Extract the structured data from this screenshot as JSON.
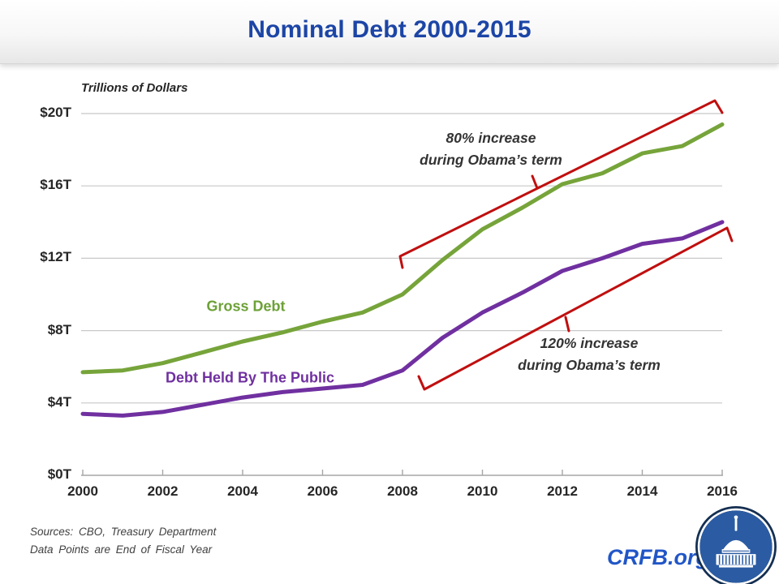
{
  "title": "Nominal Debt 2000-2015",
  "axis_unit_label": "Trillions of Dollars",
  "series_labels": {
    "gross": "Gross Debt",
    "public": "Debt Held By The Public"
  },
  "annotations": {
    "gross": {
      "line1": "80% increase",
      "line2": "during Obama’s term"
    },
    "public": {
      "line1": "120% increase",
      "line2": "during Obama’s term"
    }
  },
  "footer": {
    "source_line1": "Sources: CBO, Treasury Department",
    "source_line2": "Data Points are End of Fiscal Year",
    "brand": "CRFB.org"
  },
  "colors": {
    "title_blue": "#1c45a6",
    "brand_blue": "#2156c7",
    "gross_green": "#76a43a",
    "public_purple": "#7030a0",
    "bracket_red": "#c00f0f",
    "gridline_gray": "#c8c8c8",
    "axis_gray": "#a6a6a6",
    "text_dark": "#262626"
  },
  "chart_data": {
    "type": "line",
    "title": "Nominal Debt 2000-2015",
    "ylabel": "Trillions of Dollars",
    "xlim": [
      2000,
      2016
    ],
    "ylim": [
      0,
      20
    ],
    "grid": "horizontal",
    "legend": "inline-labels",
    "x": [
      2000,
      2001,
      2002,
      2003,
      2004,
      2005,
      2006,
      2007,
      2008,
      2009,
      2010,
      2011,
      2012,
      2013,
      2014,
      2015,
      2016
    ],
    "x_ticks": [
      2000,
      2002,
      2004,
      2006,
      2008,
      2010,
      2012,
      2014,
      2016
    ],
    "x_tick_labels": [
      "2000",
      "2002",
      "2004",
      "2006",
      "2008",
      "2010",
      "2012",
      "2014",
      "2016"
    ],
    "y_ticks": [
      0,
      4,
      8,
      12,
      16,
      20
    ],
    "y_tick_labels": [
      "$0T",
      "$4T",
      "$8T",
      "$12T",
      "$16T",
      "$20T"
    ],
    "series": [
      {
        "name": "Gross Debt",
        "color": "#76a43a",
        "values": [
          5.7,
          5.8,
          6.2,
          6.8,
          7.4,
          7.9,
          8.5,
          9.0,
          10.0,
          11.9,
          13.6,
          14.8,
          16.1,
          16.7,
          17.8,
          18.2,
          19.4
        ]
      },
      {
        "name": "Debt Held By The Public",
        "color": "#7030a0",
        "values": [
          3.4,
          3.3,
          3.5,
          3.9,
          4.3,
          4.6,
          4.8,
          5.0,
          5.8,
          7.6,
          9.0,
          10.1,
          11.3,
          12.0,
          12.8,
          13.1,
          14.0
        ]
      }
    ],
    "annotations": [
      {
        "text": "80% increase during Obama’s term",
        "series": "Gross Debt",
        "span_years": [
          2008,
          2016
        ]
      },
      {
        "text": "120% increase during Obama’s term",
        "series": "Debt Held By The Public",
        "span_years": [
          2008.5,
          2016
        ]
      }
    ]
  }
}
